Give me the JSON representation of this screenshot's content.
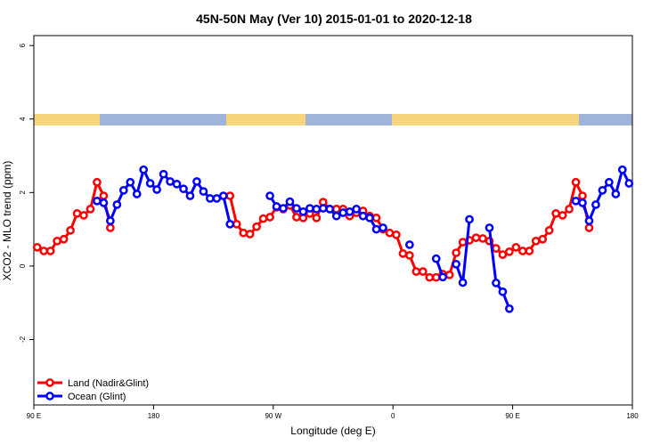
{
  "chart_data": {
    "type": "line",
    "title": "45N-50N May (Ver 10)   2015-01-01 to 2020-12-18",
    "xlabel": "Longitude (deg E)",
    "ylabel": "XCO2 - MLO trend (ppm)",
    "xlim": [
      90,
      540
    ],
    "ylim": [
      -3.78,
      6.27
    ],
    "xticks": [
      {
        "value": 90,
        "label": "90 E"
      },
      180,
      {
        "value": 270,
        "label": "90 W"
      },
      {
        "value": 360,
        "label": "0"
      },
      {
        "value": 450,
        "label": "90 E"
      },
      {
        "value": 540,
        "label": "180"
      }
    ],
    "yticks": [
      -2,
      0,
      2,
      4,
      6
    ],
    "legend": "bottom-left",
    "x": [
      92.5,
      97.5,
      102.5,
      107.5,
      112.5,
      117.5,
      122.5,
      127.5,
      132.5,
      137.5,
      142.5,
      147.5,
      152.5,
      157.5,
      162.5,
      167.5,
      172.5,
      177.5,
      182.5,
      187.5,
      192.5,
      197.5,
      202.5,
      207.5,
      212.5,
      217.5,
      222.5,
      227.5,
      232.5,
      237.5,
      242.5,
      247.5,
      252.5,
      257.5,
      262.5,
      267.5,
      272.5,
      277.5,
      282.5,
      287.5,
      292.5,
      297.5,
      302.5,
      307.5,
      312.5,
      317.5,
      322.5,
      327.5,
      332.5,
      337.5,
      342.5,
      347.5,
      352.5,
      357.5,
      362.5,
      367.5,
      372.5,
      377.5,
      382.5,
      387.5,
      392.5,
      397.5,
      402.5,
      407.5,
      412.5,
      417.5,
      422.5,
      427.5,
      432.5,
      437.5,
      442.5,
      447.5,
      452.5,
      457.5,
      462.5,
      467.5,
      472.5,
      477.5,
      482.5,
      487.5,
      492.5,
      497.5,
      502.5,
      507.5,
      512.5,
      517.5,
      522.5,
      527.5,
      532.5,
      537.5
    ],
    "series": [
      {
        "name": "Land (Nadir&Glint)",
        "color": "#ff0000",
        "values": [
          0.51,
          0.41,
          0.41,
          0.68,
          0.73,
          0.97,
          1.43,
          1.38,
          1.55,
          2.28,
          1.91,
          1.04,
          null,
          null,
          null,
          null,
          null,
          null,
          null,
          null,
          null,
          null,
          null,
          null,
          null,
          null,
          null,
          null,
          null,
          1.91,
          1.14,
          0.9,
          0.87,
          1.07,
          1.29,
          1.33,
          1.6,
          1.55,
          1.65,
          1.33,
          1.31,
          1.43,
          1.31,
          1.74,
          1.55,
          1.55,
          1.55,
          1.36,
          1.45,
          1.5,
          1.36,
          1.31,
          1.0,
          0.9,
          0.85,
          0.34,
          0.29,
          -0.15,
          -0.15,
          -0.31,
          -0.31,
          -0.22,
          -0.24,
          0.36,
          0.65,
          0.7,
          0.77,
          0.75,
          0.68,
          0.48,
          0.31,
          0.39,
          0.51,
          0.41,
          0.41,
          0.68,
          0.73,
          0.97,
          1.43,
          1.38,
          1.55,
          2.28,
          1.91,
          1.04,
          null,
          null,
          null,
          null,
          null,
          null
        ]
      },
      {
        "name": "Ocean (Glint)",
        "color": "#0000ff",
        "values": [
          null,
          null,
          null,
          null,
          null,
          null,
          null,
          null,
          null,
          1.77,
          1.72,
          1.23,
          1.67,
          2.06,
          2.28,
          1.96,
          2.62,
          2.25,
          2.08,
          2.5,
          2.3,
          2.23,
          2.1,
          1.91,
          2.3,
          2.03,
          1.84,
          1.84,
          1.91,
          1.14,
          null,
          null,
          null,
          null,
          null,
          1.91,
          1.62,
          1.57,
          1.75,
          1.57,
          1.48,
          1.57,
          1.55,
          1.57,
          1.55,
          1.36,
          1.45,
          1.48,
          1.55,
          1.36,
          1.31,
          1.0,
          1.04,
          null,
          null,
          null,
          0.58,
          null,
          null,
          null,
          0.2,
          -0.3,
          null,
          0.05,
          -0.45,
          1.27,
          null,
          null,
          1.04,
          -0.46,
          -0.7,
          -1.16,
          null,
          null,
          null,
          null,
          null,
          null,
          null,
          null,
          null,
          1.77,
          1.72,
          1.23,
          1.67,
          2.06,
          2.28,
          1.96,
          2.62,
          2.25
        ]
      }
    ]
  }
}
